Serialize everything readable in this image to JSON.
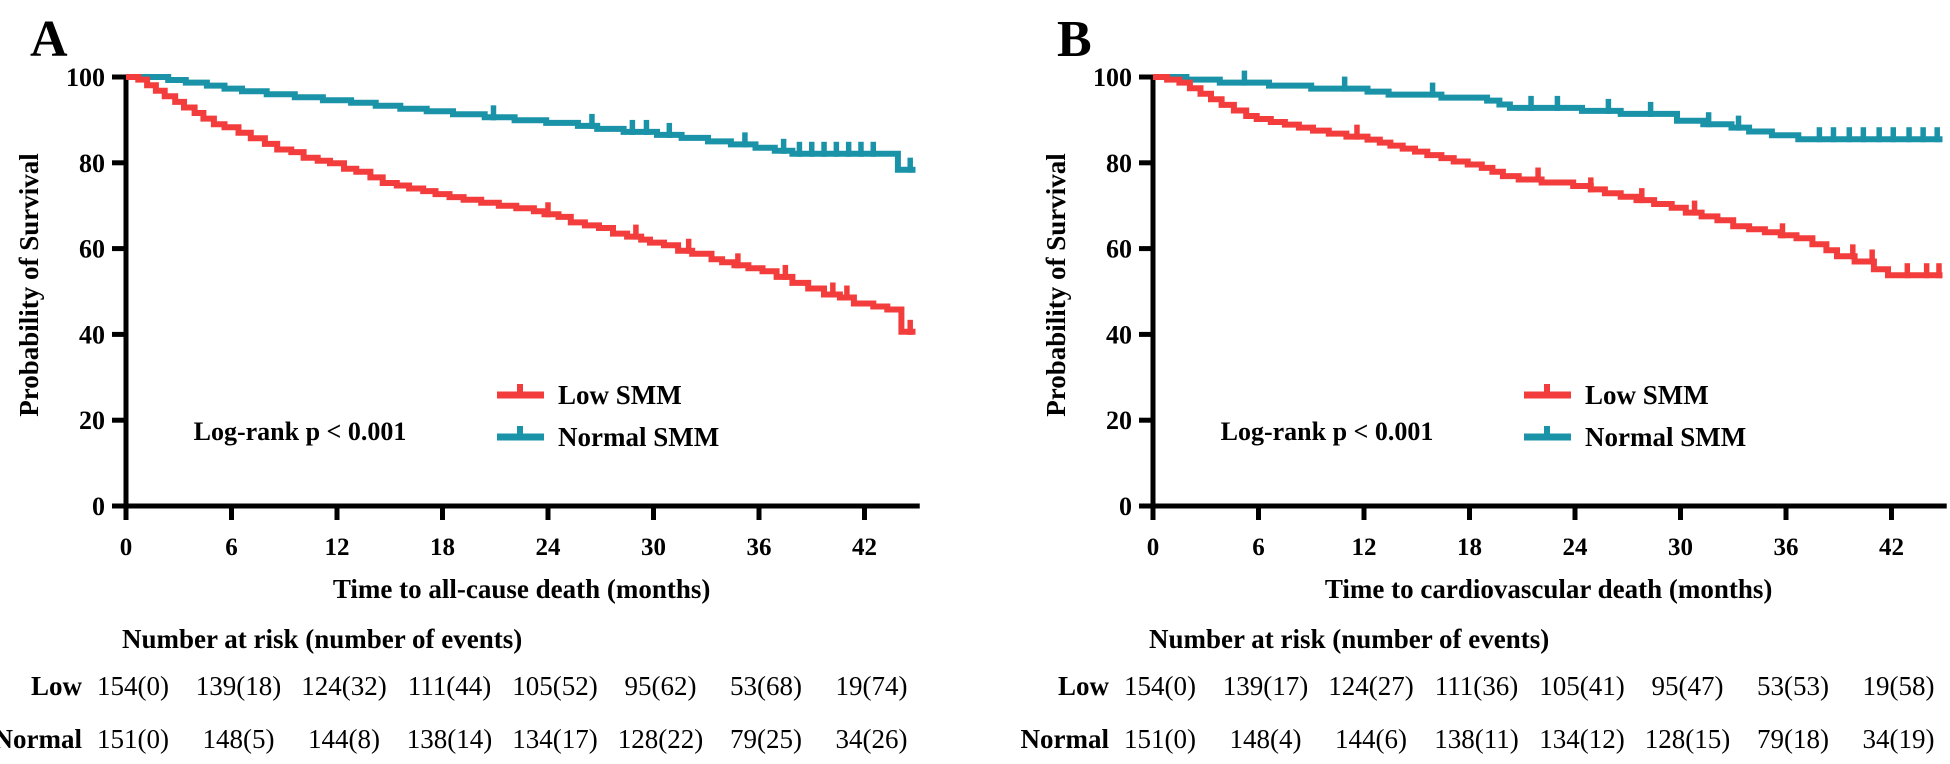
{
  "colors": {
    "low_smm": "#F33D3C",
    "normal_smm": "#1A93A8",
    "axis": "#000000",
    "background": "#FFFFFF"
  },
  "chart_data": [
    {
      "panel_label": "A",
      "type": "line",
      "subtype": "kaplan-meier-step",
      "xlabel": "Time to all-cause death (months)",
      "ylabel": "Probability of Survival",
      "annotation": "Log-rank p < 0.001",
      "xticks": [
        0,
        6,
        12,
        18,
        24,
        30,
        36,
        42
      ],
      "yticks": [
        0,
        20,
        40,
        60,
        80,
        100
      ],
      "xlim": [
        0,
        45
      ],
      "ylim": [
        0,
        100
      ],
      "grid": false,
      "legend_position": "inside-lower-middle",
      "series": [
        {
          "name": "Low SMM",
          "color": "#F33D3C",
          "steps": [
            [
              0.7,
              99.4
            ],
            [
              1.2,
              98.1
            ],
            [
              1.7,
              96.8
            ],
            [
              2.2,
              95.5
            ],
            [
              2.8,
              94.2
            ],
            [
              3.3,
              92.9
            ],
            [
              3.9,
              91.6
            ],
            [
              4.4,
              90.3
            ],
            [
              5.0,
              89.0
            ],
            [
              5.6,
              88.3
            ],
            [
              6.4,
              87.0
            ],
            [
              7.1,
              85.7
            ],
            [
              7.9,
              84.4
            ],
            [
              8.6,
              83.1
            ],
            [
              9.4,
              82.5
            ],
            [
              10.1,
              81.2
            ],
            [
              10.9,
              80.5
            ],
            [
              11.6,
              79.9
            ],
            [
              12.4,
              78.6
            ],
            [
              13.1,
              77.9
            ],
            [
              13.9,
              76.6
            ],
            [
              14.6,
              75.3
            ],
            [
              15.4,
              74.7
            ],
            [
              16.1,
              74.0
            ],
            [
              16.9,
              73.4
            ],
            [
              17.6,
              72.7
            ],
            [
              18.4,
              72.0
            ],
            [
              19.2,
              71.4
            ],
            [
              20.2,
              70.7
            ],
            [
              21.2,
              70.0
            ],
            [
              22.2,
              69.4
            ],
            [
              23.2,
              68.7
            ],
            [
              23.8,
              68.0
            ],
            [
              24.6,
              67.4
            ],
            [
              25.3,
              66.1
            ],
            [
              26.1,
              65.4
            ],
            [
              26.9,
              64.8
            ],
            [
              27.7,
              63.5
            ],
            [
              28.5,
              62.8
            ],
            [
              29.3,
              62.1
            ],
            [
              29.8,
              61.4
            ],
            [
              30.6,
              60.8
            ],
            [
              31.4,
              59.5
            ],
            [
              32.2,
              58.8
            ],
            [
              33.3,
              57.5
            ],
            [
              33.9,
              56.8
            ],
            [
              34.6,
              56.1
            ],
            [
              35.4,
              55.4
            ],
            [
              36.2,
              54.7
            ],
            [
              37.0,
              53.4
            ],
            [
              37.9,
              52.0
            ],
            [
              38.8,
              50.7
            ],
            [
              39.7,
              49.3
            ],
            [
              40.6,
              48.6
            ],
            [
              41.4,
              47.2
            ],
            [
              42.5,
              46.5
            ],
            [
              43.3,
              45.8
            ],
            [
              44.1,
              40.6
            ]
          ],
          "censor_times": [
            24.0,
            29.0,
            32.0,
            34.8,
            37.5,
            40.2,
            41.0,
            44.6
          ]
        },
        {
          "name": "Normal SMM",
          "color": "#1A93A8",
          "steps": [
            [
              2.4,
              99.3
            ],
            [
              3.4,
              98.7
            ],
            [
              4.6,
              98.0
            ],
            [
              5.6,
              97.3
            ],
            [
              6.6,
              96.7
            ],
            [
              8.0,
              96.0
            ],
            [
              9.6,
              95.3
            ],
            [
              11.2,
              94.6
            ],
            [
              12.8,
              94.0
            ],
            [
              14.2,
              93.3
            ],
            [
              15.6,
              92.6
            ],
            [
              17.1,
              92.0
            ],
            [
              18.6,
              91.3
            ],
            [
              20.4,
              90.6
            ],
            [
              22.1,
              89.9
            ],
            [
              23.9,
              89.3
            ],
            [
              25.7,
              88.6
            ],
            [
              26.8,
              87.9
            ],
            [
              28.3,
              87.2
            ],
            [
              30.2,
              86.5
            ],
            [
              31.6,
              85.8
            ],
            [
              33.1,
              85.0
            ],
            [
              34.4,
              84.3
            ],
            [
              35.8,
              83.5
            ],
            [
              36.9,
              82.8
            ],
            [
              37.9,
              82.1
            ],
            [
              43.9,
              78.4
            ]
          ],
          "censor_times": [
            20.9,
            26.5,
            28.8,
            29.6,
            30.9,
            35.2,
            37.4,
            38.3,
            39.0,
            39.7,
            40.4,
            41.1,
            41.8,
            42.5,
            44.6
          ]
        }
      ],
      "risk_table": {
        "title": "Number at risk (number of events)",
        "time_points": [
          0,
          6,
          12,
          18,
          24,
          30,
          36,
          42
        ],
        "rows": [
          {
            "label": "Low",
            "color": "#F33D3C",
            "values": [
              "154(0)",
              "139(18)",
              "124(32)",
              "111(44)",
              "105(52)",
              "95(62)",
              "53(68)",
              "19(74)"
            ]
          },
          {
            "label": "Normal",
            "color": "#1A93A8",
            "values": [
              "151(0)",
              "148(5)",
              "144(8)",
              "138(14)",
              "134(17)",
              "128(22)",
              "79(25)",
              "34(26)"
            ]
          }
        ]
      }
    },
    {
      "panel_label": "B",
      "type": "line",
      "subtype": "kaplan-meier-step",
      "xlabel": "Time to cardiovascular death (months)",
      "ylabel": "Probability of Survival",
      "annotation": "Log-rank p < 0.001",
      "xticks": [
        0,
        6,
        12,
        18,
        24,
        30,
        36,
        42
      ],
      "yticks": [
        0,
        20,
        40,
        60,
        80,
        100
      ],
      "xlim": [
        0,
        45
      ],
      "ylim": [
        0,
        100
      ],
      "grid": false,
      "legend_position": "inside-lower-middle",
      "series": [
        {
          "name": "Low SMM",
          "color": "#F33D3C",
          "steps": [
            [
              0.8,
              99.4
            ],
            [
              1.5,
              98.7
            ],
            [
              2.1,
              97.4
            ],
            [
              2.7,
              96.1
            ],
            [
              3.3,
              94.8
            ],
            [
              3.9,
              93.5
            ],
            [
              4.6,
              92.2
            ],
            [
              5.3,
              90.9
            ],
            [
              5.9,
              90.2
            ],
            [
              6.7,
              89.5
            ],
            [
              7.5,
              88.9
            ],
            [
              8.3,
              88.2
            ],
            [
              9.1,
              87.5
            ],
            [
              10.0,
              86.8
            ],
            [
              11.0,
              86.1
            ],
            [
              12.2,
              85.4
            ],
            [
              12.9,
              84.7
            ],
            [
              13.5,
              84.0
            ],
            [
              14.2,
              83.3
            ],
            [
              14.9,
              82.6
            ],
            [
              15.6,
              81.8
            ],
            [
              16.4,
              81.1
            ],
            [
              17.1,
              80.3
            ],
            [
              17.9,
              79.6
            ],
            [
              18.7,
              78.8
            ],
            [
              19.3,
              77.9
            ],
            [
              19.9,
              76.9
            ],
            [
              20.8,
              76.1
            ],
            [
              22.1,
              75.4
            ],
            [
              23.9,
              74.6
            ],
            [
              24.9,
              73.8
            ],
            [
              25.7,
              72.9
            ],
            [
              26.6,
              72.1
            ],
            [
              27.5,
              71.3
            ],
            [
              28.5,
              70.4
            ],
            [
              29.5,
              69.5
            ],
            [
              30.3,
              68.4
            ],
            [
              31.2,
              67.5
            ],
            [
              32.1,
              66.6
            ],
            [
              33.0,
              65.2
            ],
            [
              33.9,
              64.5
            ],
            [
              34.8,
              63.8
            ],
            [
              35.7,
              63.1
            ],
            [
              36.6,
              62.4
            ],
            [
              37.5,
              61.0
            ],
            [
              38.3,
              59.6
            ],
            [
              38.9,
              58.2
            ],
            [
              39.9,
              57.0
            ],
            [
              41.0,
              55.2
            ],
            [
              41.8,
              53.8
            ]
          ],
          "censor_times": [
            11.6,
            21.9,
            24.9,
            27.8,
            30.8,
            35.8,
            39.8,
            40.9,
            42.9,
            44.0,
            44.7
          ]
        },
        {
          "name": "Normal SMM",
          "color": "#1A93A8",
          "steps": [
            [
              1.9,
              99.4
            ],
            [
              3.8,
              98.7
            ],
            [
              6.6,
              98.0
            ],
            [
              9.0,
              97.3
            ],
            [
              12.2,
              96.6
            ],
            [
              13.4,
              95.9
            ],
            [
              16.4,
              95.2
            ],
            [
              19.0,
              94.5
            ],
            [
              19.7,
              93.6
            ],
            [
              20.3,
              92.8
            ],
            [
              24.4,
              92.1
            ],
            [
              26.6,
              91.4
            ],
            [
              29.8,
              89.8
            ],
            [
              31.3,
              89.0
            ],
            [
              32.9,
              88.2
            ],
            [
              33.9,
              87.3
            ],
            [
              35.2,
              86.4
            ],
            [
              36.7,
              85.5
            ]
          ],
          "censor_times": [
            5.2,
            10.9,
            15.9,
            21.5,
            23.0,
            25.9,
            28.3,
            31.6,
            33.3,
            37.9,
            38.7,
            39.6,
            40.4,
            41.3,
            42.1,
            43.0,
            43.8,
            44.6
          ]
        }
      ],
      "risk_table": {
        "title": "Number at risk (number of events)",
        "time_points": [
          0,
          6,
          12,
          18,
          24,
          30,
          36,
          42
        ],
        "rows": [
          {
            "label": "Low",
            "color": "#F33D3C",
            "values": [
              "154(0)",
              "139(17)",
              "124(27)",
              "111(36)",
              "105(41)",
              "95(47)",
              "53(53)",
              "19(58)"
            ]
          },
          {
            "label": "Normal",
            "color": "#1A93A8",
            "values": [
              "151(0)",
              "148(4)",
              "144(6)",
              "138(11)",
              "134(12)",
              "128(15)",
              "79(18)",
              "34(19)"
            ]
          }
        ]
      }
    }
  ]
}
